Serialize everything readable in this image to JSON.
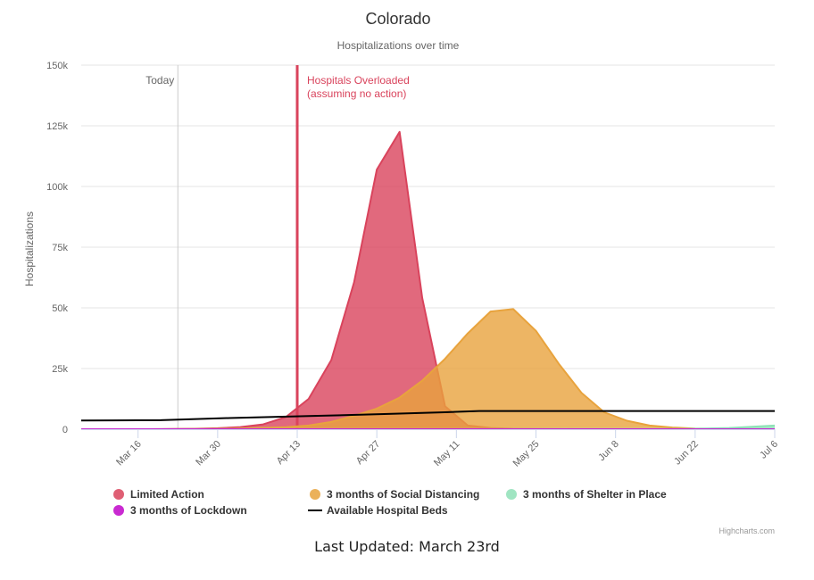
{
  "chart_data": {
    "type": "area",
    "title": "Colorado",
    "subtitle": "Hospitalizations over time",
    "ylabel": "Hospitalizations",
    "ylim": [
      0,
      150000
    ],
    "y_ticks": [
      0,
      25000,
      50000,
      75000,
      100000,
      125000,
      150000
    ],
    "y_tick_labels": [
      "0",
      "25k",
      "50k",
      "75k",
      "100k",
      "125k",
      "150k"
    ],
    "x_range": [
      "2020-03-06",
      "2020-07-06"
    ],
    "x_ticks": [
      "2020-03-16",
      "2020-03-30",
      "2020-04-13",
      "2020-04-27",
      "2020-05-11",
      "2020-05-25",
      "2020-06-08",
      "2020-06-22",
      "2020-07-06"
    ],
    "x_tick_labels": [
      "Mar 16",
      "Mar 30",
      "Apr 13",
      "Apr 27",
      "May 11",
      "May 25",
      "Jun 8",
      "Jun 22",
      "Jul 6"
    ],
    "grid": true,
    "legend_position": "bottom",
    "plot_lines": [
      {
        "date": "2020-03-23",
        "label": "Today",
        "color": "#cccccc"
      },
      {
        "date": "2020-04-13",
        "label": "Hospitals Overloaded",
        "label2": "(assuming no action)",
        "color": "#d9435c"
      }
    ],
    "series": [
      {
        "name": "Limited Action",
        "kind": "area",
        "color": "#d9435c",
        "x": [
          "2020-03-06",
          "2020-03-10",
          "2020-03-14",
          "2020-03-18",
          "2020-03-22",
          "2020-03-26",
          "2020-03-30",
          "2020-04-03",
          "2020-04-07",
          "2020-04-11",
          "2020-04-15",
          "2020-04-19",
          "2020-04-23",
          "2020-04-27",
          "2020-05-01",
          "2020-05-05",
          "2020-05-09",
          "2020-05-13",
          "2020-05-17",
          "2020-05-21",
          "2020-05-25",
          "2020-06-01",
          "2020-06-15",
          "2020-07-06"
        ],
        "y": [
          0,
          0,
          0,
          0,
          100,
          200,
          400,
          900,
          2000,
          5000,
          12500,
          28500,
          60500,
          107000,
          122500,
          54000,
          9500,
          1500,
          500,
          200,
          100,
          0,
          0,
          0
        ]
      },
      {
        "name": "3 months of Social Distancing",
        "kind": "area",
        "color": "#e8a33d",
        "x": [
          "2020-03-06",
          "2020-03-20",
          "2020-04-01",
          "2020-04-11",
          "2020-04-15",
          "2020-04-19",
          "2020-04-23",
          "2020-04-27",
          "2020-05-01",
          "2020-05-05",
          "2020-05-09",
          "2020-05-13",
          "2020-05-17",
          "2020-05-21",
          "2020-05-25",
          "2020-05-29",
          "2020-06-02",
          "2020-06-06",
          "2020-06-10",
          "2020-06-14",
          "2020-06-18",
          "2020-06-22",
          "2020-06-26",
          "2020-07-06"
        ],
        "y": [
          0,
          0,
          200,
          800,
          1500,
          3000,
          5500,
          8500,
          13000,
          20000,
          29000,
          39500,
          48500,
          49500,
          40500,
          27000,
          15000,
          7000,
          3500,
          1500,
          700,
          300,
          100,
          0
        ]
      },
      {
        "name": "3 months of Shelter in Place",
        "kind": "area",
        "color": "#8fe1b7",
        "x": [
          "2020-03-06",
          "2020-06-20",
          "2020-06-28",
          "2020-07-06"
        ],
        "y": [
          0,
          100,
          500,
          1500
        ]
      },
      {
        "name": "3 months of Lockdown",
        "kind": "area",
        "color": "#c92ad1",
        "x": [
          "2020-03-06",
          "2020-07-06"
        ],
        "y": [
          0,
          0
        ]
      },
      {
        "name": "Available Hospital Beds",
        "kind": "line",
        "color": "#000000",
        "x": [
          "2020-03-06",
          "2020-03-20",
          "2020-04-01",
          "2020-04-15",
          "2020-04-29",
          "2020-05-09",
          "2020-05-15",
          "2020-06-15",
          "2020-07-06"
        ],
        "y": [
          3600,
          3700,
          4600,
          5400,
          6300,
          7000,
          7500,
          7500,
          7500
        ]
      }
    ],
    "credits": "Highcharts.com"
  },
  "footer": {
    "text": "Last Updated: March 23rd"
  }
}
